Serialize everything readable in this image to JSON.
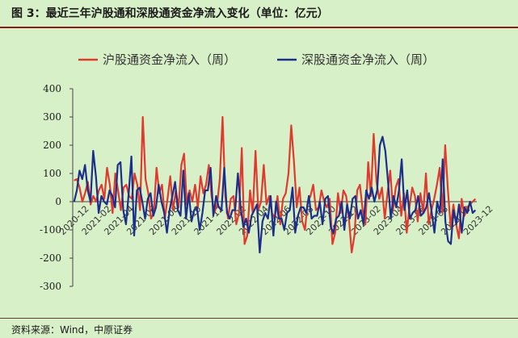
{
  "figure": {
    "title": "图 3：最近三年沪股通和深股通资金净流入变化（单位：亿元）",
    "source": "资料来源：Wind，中原证券"
  },
  "chart_data": {
    "type": "line",
    "ylim": [
      -300,
      400
    ],
    "yticks": [
      -300,
      -200,
      -100,
      0,
      100,
      200,
      300,
      400
    ],
    "xlabels": [
      "2020-12",
      "2021-02",
      "2021-04",
      "2021-06",
      "2021-08",
      "2021-10",
      "2021-12",
      "2022-02",
      "2022-04",
      "2022-06",
      "2022-08",
      "2022-10",
      "2022-12",
      "2023-02",
      "2023-04",
      "2023-06",
      "2023-08",
      "2023-10",
      "2023-12"
    ],
    "legend_position": "top",
    "grid": false,
    "series": [
      {
        "name": "沪股通资金净流入（周）",
        "color": "#e03a2e",
        "values": [
          75,
          80,
          50,
          0,
          30,
          70,
          -10,
          20,
          0,
          40,
          60,
          10,
          120,
          60,
          -40,
          100,
          40,
          -30,
          50,
          60,
          20,
          10,
          100,
          60,
          -30,
          300,
          80,
          30,
          -60,
          -40,
          120,
          30,
          60,
          -60,
          10,
          90,
          -30,
          40,
          -20,
          130,
          170,
          -10,
          40,
          0,
          60,
          -20,
          90,
          30,
          60,
          130,
          20,
          -40,
          -10,
          80,
          300,
          20,
          -60,
          10,
          20,
          -80,
          -40,
          190,
          -150,
          -120,
          40,
          -40,
          180,
          -30,
          0,
          130,
          -10,
          20,
          -40,
          -60,
          20,
          -80,
          10,
          30,
          100,
          270,
          140,
          -20,
          50,
          -70,
          -100,
          0,
          20,
          60,
          -30,
          -20,
          40,
          0,
          -20,
          10,
          -150,
          -110,
          30,
          -40,
          40,
          20,
          -60,
          -180,
          -120,
          40,
          60,
          -30,
          -80,
          140,
          20,
          240,
          70,
          10,
          50,
          -60,
          30,
          110,
          -30,
          50,
          80,
          -50,
          30,
          -110,
          -20,
          50,
          20,
          -70,
          30,
          -40,
          100,
          -80,
          -30,
          10,
          60,
          120,
          -40,
          200,
          40,
          -90,
          -10,
          -80,
          -130,
          10,
          -50,
          -20,
          -10,
          0,
          10
        ]
      },
      {
        "name": "深股通资金净流入（周）",
        "color": "#1c2e8a",
        "values": [
          0,
          40,
          110,
          80,
          130,
          40,
          0,
          180,
          90,
          -40,
          20,
          0,
          -10,
          40,
          20,
          -20,
          130,
          140,
          -30,
          -80,
          30,
          160,
          -120,
          40,
          50,
          0,
          -60,
          10,
          30,
          -50,
          -20,
          60,
          0,
          -40,
          -110,
          -30,
          20,
          70,
          -30,
          -50,
          110,
          -60,
          30,
          -70,
          -30,
          -20,
          -100,
          -40,
          40,
          40,
          120,
          -50,
          20,
          -20,
          -30,
          120,
          -40,
          -60,
          -30,
          -30,
          100,
          -20,
          -90,
          -60,
          -110,
          -50,
          -30,
          -10,
          -180,
          -70,
          -40,
          -60,
          20,
          -120,
          0,
          -60,
          -60,
          -100,
          -40,
          -30,
          50,
          -110,
          -50,
          -20,
          -20,
          -40,
          20,
          -60,
          -50,
          -50,
          0,
          -80,
          10,
          20,
          -90,
          -110,
          -60,
          -50,
          0,
          -100,
          -10,
          -60,
          10,
          20,
          -60,
          -30,
          -80,
          40,
          10,
          50,
          0,
          40,
          200,
          230,
          180,
          70,
          -60,
          20,
          -20,
          40,
          150,
          -30,
          40,
          -60,
          -40,
          -30,
          20,
          -50,
          -40,
          -20,
          30,
          -40,
          -110,
          0,
          -40,
          150,
          -70,
          -140,
          -150,
          -30,
          -80,
          -10,
          -110,
          -20,
          -40,
          0,
          -40,
          -30
        ]
      }
    ]
  }
}
